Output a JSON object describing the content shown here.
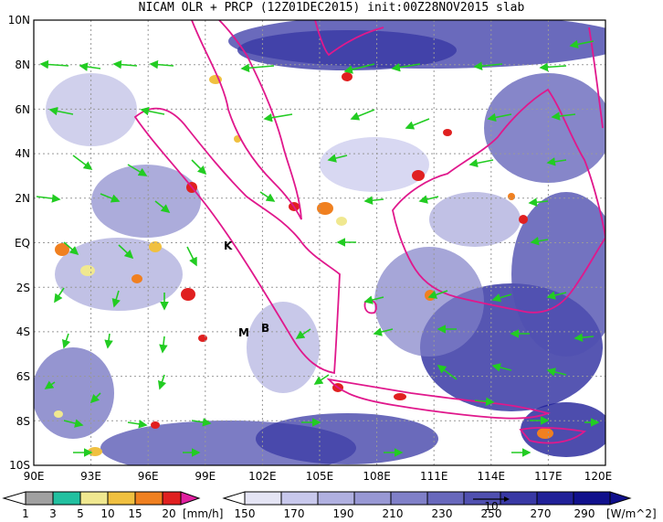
{
  "title": "NICAM OLR + PRCP (12Z01DEC2015) init:00Z28NOV2015 slab",
  "map": {
    "lon_range": [
      90,
      120
    ],
    "lat_range": [
      -10,
      10
    ],
    "lat_labels": [
      "10N",
      "8N",
      "6N",
      "4N",
      "2N",
      "EQ",
      "2S",
      "4S",
      "6S",
      "8S",
      "10S"
    ],
    "lon_labels": [
      "90E",
      "93E",
      "96E",
      "99E",
      "102E",
      "105E",
      "108E",
      "111E",
      "114E",
      "117E",
      "120E"
    ],
    "place_labels": [
      {
        "id": "K",
        "text": "K"
      },
      {
        "id": "M",
        "text": "M"
      },
      {
        "id": "B",
        "text": "B"
      }
    ],
    "coast_color": "#e0188c",
    "arrow_color": "#22cc22"
  },
  "precip_colorbar": {
    "ticks": [
      "1",
      "3",
      "5",
      "10",
      "15",
      "20"
    ],
    "unit": "[mm/h]",
    "colors": [
      "#a0a0a0",
      "#22c0a0",
      "#f0e890",
      "#f0c040",
      "#f08020",
      "#e02020",
      "#e020a0"
    ]
  },
  "olr_colorbar": {
    "ticks": [
      "150",
      "170",
      "190",
      "210",
      "230",
      "250",
      "270",
      "290"
    ],
    "unit": "[W/m^2]",
    "vector_label": "10",
    "colors": [
      "#ffffff",
      "#e4e4f4",
      "#c8c8ec",
      "#b0b0e0",
      "#9898d4",
      "#8080c8",
      "#6868bc",
      "#5050b0",
      "#3838a4",
      "#202098",
      "#10108c"
    ]
  }
}
